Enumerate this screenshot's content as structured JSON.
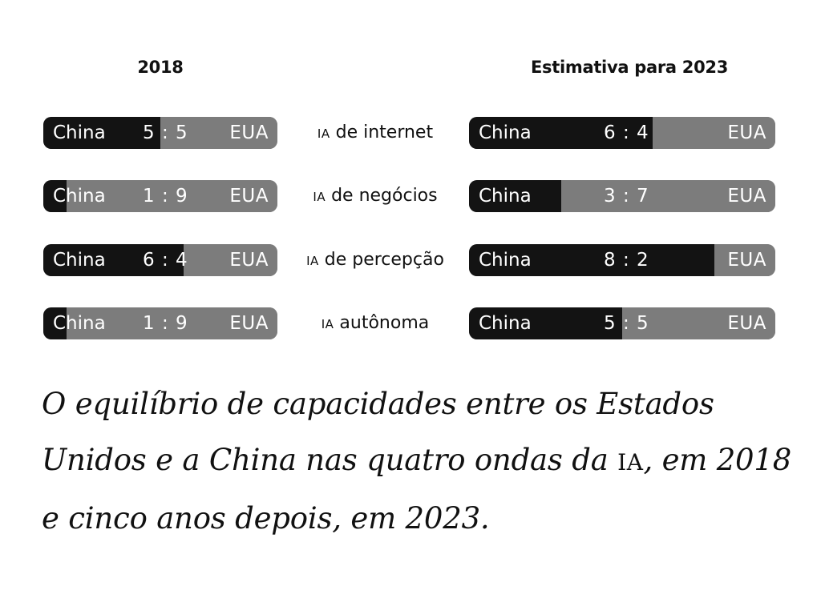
{
  "chart_data": {
    "type": "bar",
    "subtype": "stacked-horizontal-ratio",
    "columns": [
      {
        "title": "2018",
        "key": "y2018"
      },
      {
        "title": "Estimativa para 2023",
        "key": "y2023"
      }
    ],
    "left_label": "China",
    "right_label": "EUA",
    "categories": [
      {
        "prefix": "IA",
        "label": " de internet"
      },
      {
        "prefix": "IA",
        "label": " de negócios"
      },
      {
        "prefix": "IA",
        "label": " de percepção"
      },
      {
        "prefix": "IA",
        "label": " autônoma"
      }
    ],
    "series": [
      {
        "name": "China",
        "y2018": [
          5,
          1,
          6,
          1
        ],
        "y2023": [
          6,
          3,
          8,
          5
        ]
      },
      {
        "name": "EUA",
        "y2018": [
          5,
          9,
          4,
          9
        ],
        "y2023": [
          4,
          7,
          2,
          5
        ]
      }
    ],
    "ratio_labels": {
      "y2018": [
        "5 : 5",
        "1 : 9",
        "6 : 4",
        "1 : 9"
      ],
      "y2023": [
        "6 : 4",
        "3 : 7",
        "8 : 2",
        "5 : 5"
      ]
    },
    "colors": {
      "china": "#131313",
      "eua": "#7c7c7c"
    }
  },
  "caption": {
    "text_before": "O equilíbrio de capacidades entre os Estados Unidos e a China nas quatro ondas da ",
    "small_caps": "IA",
    "text_after": ", em 2018 e cinco anos depois, em 2023."
  }
}
